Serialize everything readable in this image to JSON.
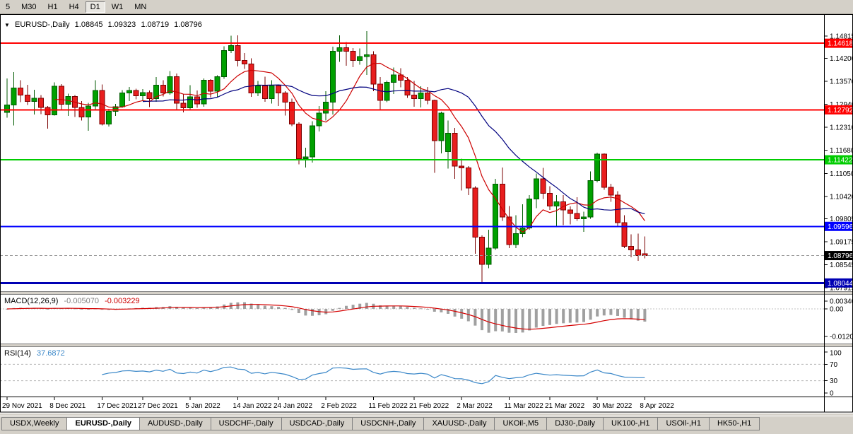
{
  "icons": {
    "collapse_triangle": "▼"
  },
  "toolbar": {
    "periods": [
      "5",
      "M30",
      "H1",
      "H4",
      "D1",
      "W1",
      "MN"
    ],
    "active": "D1"
  },
  "chart_header": {
    "symbol_label": "EURUSD-,Daily",
    "open": "1.08845",
    "high": "1.09323",
    "low": "1.08719",
    "close": "1.08796"
  },
  "chart_data": {
    "type": "candlestick",
    "symbol": "EURUSD-",
    "timeframe": "Daily",
    "scale": {
      "top_price": 1.14815,
      "bottom_price": 1.07915
    },
    "y_axis_ticks": [
      "1.14815",
      "1.14200",
      "1.13570",
      "1.12940",
      "1.12310",
      "1.11680",
      "1.11050",
      "1.10420",
      "1.09805",
      "1.09175",
      "1.08545",
      "1.07915"
    ],
    "h_lines": [
      {
        "value": 1.14618,
        "label": "1.14618",
        "color": "#ff0000",
        "width": 2
      },
      {
        "value": 1.12792,
        "label": "1.12792",
        "color": "#ff0000",
        "width": 2
      },
      {
        "value": 1.11422,
        "label": "1.11422",
        "color": "#00cc00",
        "width": 2
      },
      {
        "value": 1.09596,
        "label": "1.09596",
        "color": "#0000ff",
        "width": 2
      },
      {
        "value": 1.08044,
        "label": "1.08044",
        "color": "#0000b4",
        "width": 3
      }
    ],
    "bid": {
      "value": 1.08796,
      "label": "1.08796",
      "bg": "#000000"
    },
    "colors": {
      "bull": "#00a000",
      "bull_border": "#005a00",
      "bear": "#e81e1e",
      "bear_border": "#7a0000",
      "ma_red": "#cc0000",
      "ma_blue": "#00007f",
      "macd_hist": "#a0a0a0",
      "macd_signal": "#d40000",
      "rsi": "#3a87c8",
      "level_dash": "#b5b5b5"
    },
    "ma": [
      {
        "period": 8,
        "colorKey": "ma_red"
      },
      {
        "period": 21,
        "colorKey": "ma_blue"
      }
    ],
    "candles": [
      [
        1.1272,
        1.1365,
        1.1258,
        1.1293
      ],
      [
        1.1293,
        1.1383,
        1.1236,
        1.1339
      ],
      [
        1.1339,
        1.136,
        1.13,
        1.132
      ],
      [
        1.132,
        1.1348,
        1.1293,
        1.1302
      ],
      [
        1.1302,
        1.1334,
        1.1266,
        1.1311
      ],
      [
        1.1311,
        1.132,
        1.1267,
        1.1286
      ],
      [
        1.1286,
        1.129,
        1.1228,
        1.1265
      ],
      [
        1.1265,
        1.1355,
        1.1263,
        1.1344
      ],
      [
        1.1344,
        1.135,
        1.128,
        1.1294
      ],
      [
        1.1294,
        1.1324,
        1.1262,
        1.1316
      ],
      [
        1.1316,
        1.132,
        1.126,
        1.1286
      ],
      [
        1.1286,
        1.1303,
        1.125,
        1.126
      ],
      [
        1.126,
        1.1298,
        1.1222,
        1.129
      ],
      [
        1.129,
        1.136,
        1.128,
        1.1332
      ],
      [
        1.1332,
        1.1349,
        1.1236,
        1.124
      ],
      [
        1.124,
        1.1282,
        1.1233,
        1.1275
      ],
      [
        1.1275,
        1.1295,
        1.1262,
        1.1288
      ],
      [
        1.1288,
        1.1333,
        1.1285,
        1.1325
      ],
      [
        1.1325,
        1.1342,
        1.1303,
        1.1332
      ],
      [
        1.1332,
        1.1337,
        1.1308,
        1.1318
      ],
      [
        1.1318,
        1.1336,
        1.1304,
        1.1326
      ],
      [
        1.1326,
        1.1332,
        1.1287,
        1.131
      ],
      [
        1.131,
        1.1369,
        1.1301,
        1.1347
      ],
      [
        1.1347,
        1.136,
        1.1316,
        1.1325
      ],
      [
        1.1325,
        1.1386,
        1.1321,
        1.137
      ],
      [
        1.137,
        1.1379,
        1.1279,
        1.1297
      ],
      [
        1.1297,
        1.1323,
        1.1272,
        1.1285
      ],
      [
        1.1285,
        1.1347,
        1.1278,
        1.1315
      ],
      [
        1.1315,
        1.1332,
        1.1285,
        1.1295
      ],
      [
        1.1295,
        1.1365,
        1.1288,
        1.136
      ],
      [
        1.136,
        1.1363,
        1.1313,
        1.133
      ],
      [
        1.133,
        1.1374,
        1.1314,
        1.137
      ],
      [
        1.137,
        1.1453,
        1.1364,
        1.1442
      ],
      [
        1.1442,
        1.1482,
        1.1435,
        1.1455
      ],
      [
        1.1455,
        1.1483,
        1.1398,
        1.1415
      ],
      [
        1.1415,
        1.1435,
        1.1391,
        1.1405
      ],
      [
        1.1405,
        1.142,
        1.1315,
        1.1325
      ],
      [
        1.1325,
        1.1358,
        1.1317,
        1.1345
      ],
      [
        1.1345,
        1.137,
        1.1301,
        1.131
      ],
      [
        1.131,
        1.136,
        1.1296,
        1.1345
      ],
      [
        1.1345,
        1.1349,
        1.129,
        1.1325
      ],
      [
        1.1325,
        1.133,
        1.1263,
        1.13
      ],
      [
        1.13,
        1.131,
        1.1234,
        1.124
      ],
      [
        1.124,
        1.1245,
        1.113,
        1.1145
      ],
      [
        1.1145,
        1.1175,
        1.1121,
        1.115
      ],
      [
        1.115,
        1.1248,
        1.1135,
        1.1235
      ],
      [
        1.1235,
        1.129,
        1.122,
        1.127
      ],
      [
        1.127,
        1.133,
        1.125,
        1.13
      ],
      [
        1.13,
        1.1452,
        1.1266,
        1.144
      ],
      [
        1.144,
        1.1483,
        1.1411,
        1.145
      ],
      [
        1.145,
        1.1465,
        1.14,
        1.144
      ],
      [
        1.144,
        1.1449,
        1.1396,
        1.1415
      ],
      [
        1.1415,
        1.1448,
        1.1403,
        1.1425
      ],
      [
        1.1425,
        1.1495,
        1.1375,
        1.143
      ],
      [
        1.143,
        1.144,
        1.133,
        1.135
      ],
      [
        1.135,
        1.1369,
        1.1279,
        1.1305
      ],
      [
        1.1305,
        1.1359,
        1.13,
        1.1355
      ],
      [
        1.1355,
        1.1395,
        1.1323,
        1.1375
      ],
      [
        1.1375,
        1.1393,
        1.1341,
        1.136
      ],
      [
        1.136,
        1.1369,
        1.1312,
        1.132
      ],
      [
        1.132,
        1.1358,
        1.1288,
        1.131
      ],
      [
        1.131,
        1.1344,
        1.1286,
        1.1325
      ],
      [
        1.1325,
        1.1342,
        1.1294,
        1.1305
      ],
      [
        1.1305,
        1.1307,
        1.1106,
        1.1195
      ],
      [
        1.1195,
        1.1274,
        1.116,
        1.127
      ],
      [
        1.1165,
        1.125,
        1.1118,
        1.1215
      ],
      [
        1.1215,
        1.123,
        1.109,
        1.1125
      ],
      [
        1.1125,
        1.1145,
        1.1058,
        1.112
      ],
      [
        1.112,
        1.1125,
        1.1045,
        1.1065
      ],
      [
        1.1065,
        1.107,
        1.0885,
        1.093
      ],
      [
        1.093,
        1.0935,
        1.0806,
        1.0855
      ],
      [
        1.0855,
        1.095,
        1.0845,
        1.09
      ],
      [
        1.09,
        1.109,
        1.0895,
        1.1075
      ],
      [
        1.1075,
        1.1121,
        1.0975,
        1.0985
      ],
      [
        1.0985,
        1.1015,
        1.09,
        1.091
      ],
      [
        1.091,
        1.099,
        1.09,
        1.094
      ],
      [
        1.094,
        1.102,
        1.093,
        1.0955
      ],
      [
        1.0955,
        1.1045,
        1.095,
        1.1035
      ],
      [
        1.1035,
        1.1105,
        1.101,
        1.109
      ],
      [
        1.109,
        1.112,
        1.1035,
        1.105
      ],
      [
        1.105,
        1.107,
        1.1005,
        1.1015
      ],
      [
        1.1015,
        1.1045,
        1.096,
        1.1027
      ],
      [
        1.1027,
        1.1045,
        1.0963,
        1.1005
      ],
      [
        1.1005,
        1.1014,
        1.0965,
        1.0995
      ],
      [
        1.0995,
        1.104,
        1.0975,
        1.098
      ],
      [
        1.098,
        1.1,
        1.0945,
        1.0985
      ],
      [
        1.0985,
        1.111,
        1.098,
        1.1085
      ],
      [
        1.1085,
        1.1162,
        1.108,
        1.1158
      ],
      [
        1.1158,
        1.116,
        1.106,
        1.1067
      ],
      [
        1.1067,
        1.1076,
        1.1027,
        1.1045
      ],
      [
        1.1045,
        1.1056,
        1.096,
        1.097
      ],
      [
        1.097,
        1.099,
        1.09,
        1.0905
      ],
      [
        1.0905,
        1.0938,
        1.0875,
        1.0895
      ],
      [
        1.0895,
        1.094,
        1.0865,
        1.088
      ],
      [
        1.08845,
        1.09323,
        1.08719,
        1.08796
      ]
    ],
    "x_ticks": [
      {
        "i": 0,
        "label": "29 Nov 2021"
      },
      {
        "i": 7,
        "label": "8 Dec 2021"
      },
      {
        "i": 14,
        "label": "17 Dec 2021"
      },
      {
        "i": 20,
        "label": "27 Dec 2021"
      },
      {
        "i": 27,
        "label": "5 Jan 2022"
      },
      {
        "i": 34,
        "label": "14 Jan 2022"
      },
      {
        "i": 40,
        "label": "24 Jan 2022"
      },
      {
        "i": 47,
        "label": "2 Feb 2022"
      },
      {
        "i": 54,
        "label": "11 Feb 2022"
      },
      {
        "i": 60,
        "label": "21 Feb 2022"
      },
      {
        "i": 67,
        "label": "2 Mar 2022"
      },
      {
        "i": 74,
        "label": "11 Mar 2022"
      },
      {
        "i": 80,
        "label": "21 Mar 2022"
      },
      {
        "i": 87,
        "label": "30 Mar 2022"
      },
      {
        "i": 94,
        "label": "8 Apr 2022"
      }
    ],
    "macd": {
      "label": "MACD(12,26,9)",
      "value_main": "-0.005070",
      "value_signal": "-0.003229",
      "params": [
        12,
        26,
        9
      ],
      "axis_ticks": [
        "0.00340",
        "0.00",
        "-0.01205"
      ]
    },
    "rsi": {
      "label": "RSI(14)",
      "value": "37.6872",
      "period": 14,
      "axis_ticks": [
        "100",
        "70",
        "30",
        "0"
      ],
      "levels": [
        70,
        30
      ]
    }
  },
  "bottom_tabs": {
    "tabs": [
      {
        "label": "USDX,Weekly",
        "active": false
      },
      {
        "label": "EURUSD-,Daily",
        "active": true
      },
      {
        "label": "AUDUSD-,Daily",
        "active": false
      },
      {
        "label": "USDCHF-,Daily",
        "active": false
      },
      {
        "label": "USDCAD-,Daily",
        "active": false
      },
      {
        "label": "USDCNH-,Daily",
        "active": false
      },
      {
        "label": "XAUUSD-,Daily",
        "active": false
      },
      {
        "label": "UKOil-,M5",
        "active": false
      },
      {
        "label": "DJ30-,Daily",
        "active": false
      },
      {
        "label": "UK100-,H1",
        "active": false
      },
      {
        "label": "USOil-,H1",
        "active": false
      },
      {
        "label": "HK50-,H1",
        "active": false
      }
    ]
  }
}
